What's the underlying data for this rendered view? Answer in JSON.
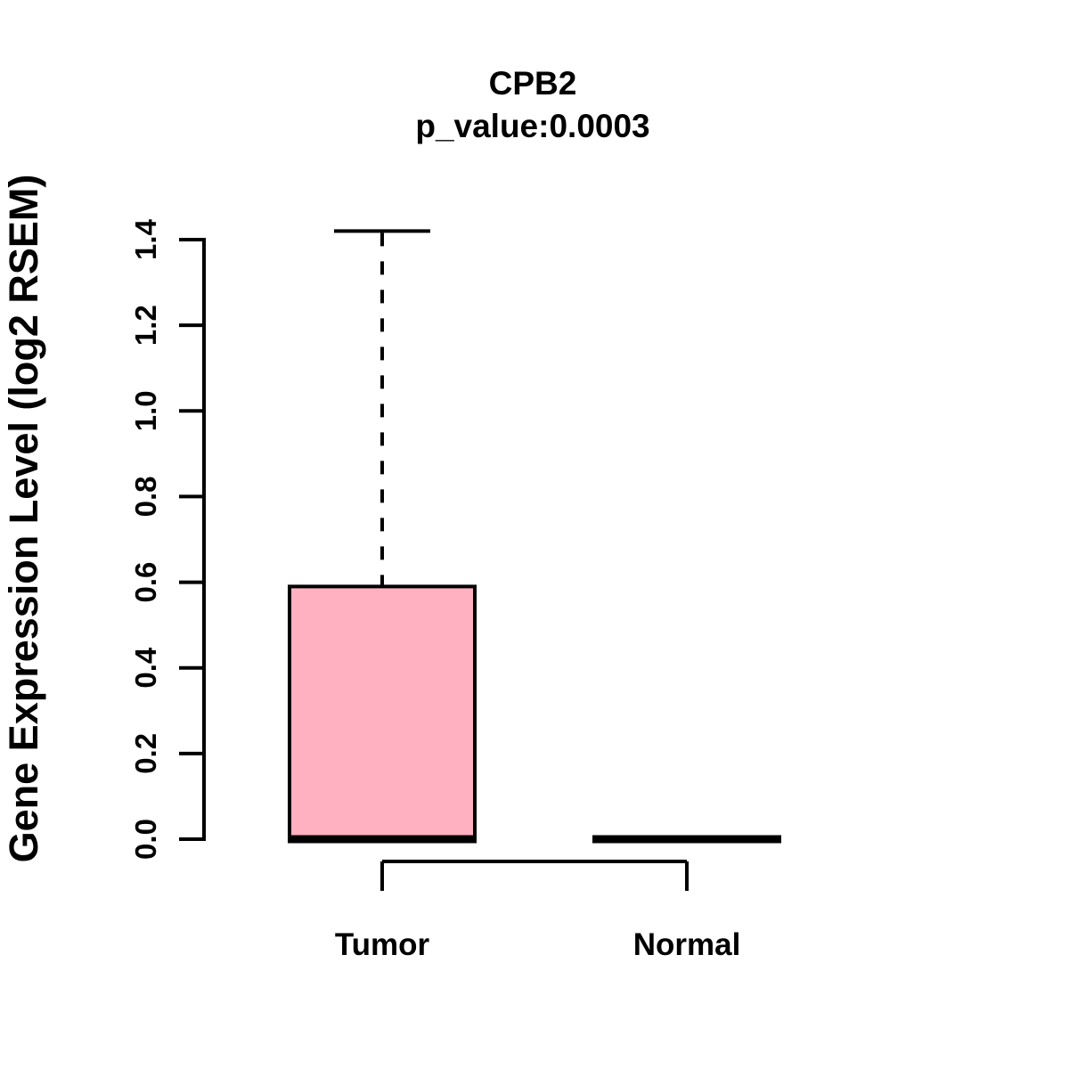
{
  "page": {
    "background": "#ffffff"
  },
  "chart_data": {
    "type": "boxplot",
    "title": "CPB2",
    "subtitle": "p_value:0.0003",
    "ylabel": "Gene Expression Level (log2 RSEM)",
    "xlabel": "",
    "ylim": [
      0.0,
      1.43
    ],
    "yticks": [
      "0.0",
      "0.2",
      "0.4",
      "0.6",
      "0.8",
      "1.0",
      "1.2",
      "1.4"
    ],
    "grid": false,
    "legend": "none",
    "colors": {
      "box_fill": "#FFB1C1",
      "line": "#000000",
      "text": "#000000"
    },
    "groups": [
      {
        "label": "Tumor",
        "median": 0.0,
        "q1": 0.0,
        "q3": 0.59,
        "whisker_low": 0.0,
        "whisker_high": 1.42
      },
      {
        "label": "Normal",
        "median": 0.0,
        "q1": 0.0,
        "q3": 0.0,
        "whisker_low": 0.0,
        "whisker_high": 0.0
      }
    ]
  }
}
